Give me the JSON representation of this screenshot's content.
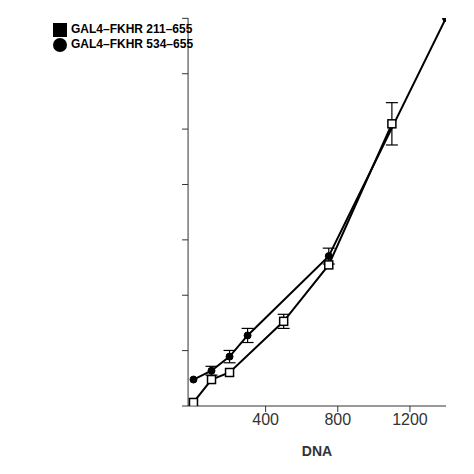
{
  "chart_data": {
    "type": "line",
    "xlabel": "DNA",
    "series": [
      {
        "name": "GAL4–FKHR 534–655",
        "color": "#000000",
        "marker": "circle",
        "x": [
          0,
          100,
          200,
          300,
          750,
          1400
        ],
        "values": [
          1.5,
          2.0,
          2.8,
          4.0,
          8.5,
          22.0
        ],
        "yerr": [
          0.0,
          0.25,
          0.35,
          0.4,
          0.45,
          0.0
        ]
      },
      {
        "name": "GAL4–FKHR 211–655",
        "color": "#000000",
        "marker": "open_square",
        "x": [
          0,
          100,
          200,
          500,
          750,
          1100
        ],
        "values": [
          0.2,
          1.5,
          1.9,
          4.8,
          8.0,
          16.0
        ],
        "yerr": [
          0.0,
          0.0,
          0.0,
          0.4,
          0.0,
          1.2
        ]
      }
    ],
    "xlim": [
      -30,
      1400
    ],
    "ylim": [
      0,
      22
    ],
    "xticks": [
      400,
      800,
      1200
    ],
    "yticks": [
      0,
      3.14,
      6.28,
      9.42,
      12.56,
      15.7,
      18.84,
      21.98
    ],
    "tick_labels": "x",
    "legend": "upper left"
  }
}
